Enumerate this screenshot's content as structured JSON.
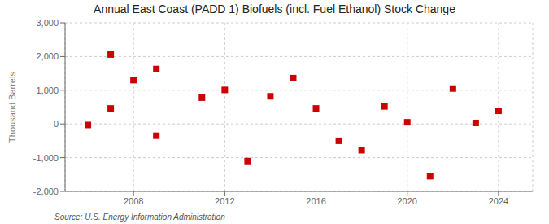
{
  "chart_data": {
    "type": "scatter",
    "title": "Annual East Coast (PADD 1) Biofuels (incl. Fuel Ethanol) Stock Change",
    "ylabel": "Thousand Barrels",
    "source": "Source: U.S. Energy Information Administration",
    "x": [
      2006,
      2007,
      2007,
      2008,
      2009,
      2009,
      2011,
      2012,
      2013,
      2014,
      2015,
      2016,
      2017,
      2018,
      2019,
      2020,
      2021,
      2022,
      2023,
      2024
    ],
    "values": [
      -30,
      460,
      2060,
      1300,
      1630,
      -350,
      780,
      1010,
      -1100,
      820,
      1360,
      460,
      -500,
      -780,
      520,
      50,
      -1550,
      1050,
      30,
      390
    ],
    "color": "#cc0000",
    "marker": "square",
    "xlim": [
      2005.0,
      2025.5
    ],
    "ylim": [
      -2000,
      3000
    ],
    "xticks": [
      2008,
      2012,
      2016,
      2020,
      2024
    ],
    "yticks": [
      {
        "value": -2000,
        "label": "-2,000"
      },
      {
        "value": -1000,
        "label": "-1,000"
      },
      0,
      {
        "value": 1000,
        "label": "1,000"
      },
      {
        "value": 2000,
        "label": "2,000"
      },
      {
        "value": 3000,
        "label": "3,000"
      }
    ],
    "grid": true
  }
}
